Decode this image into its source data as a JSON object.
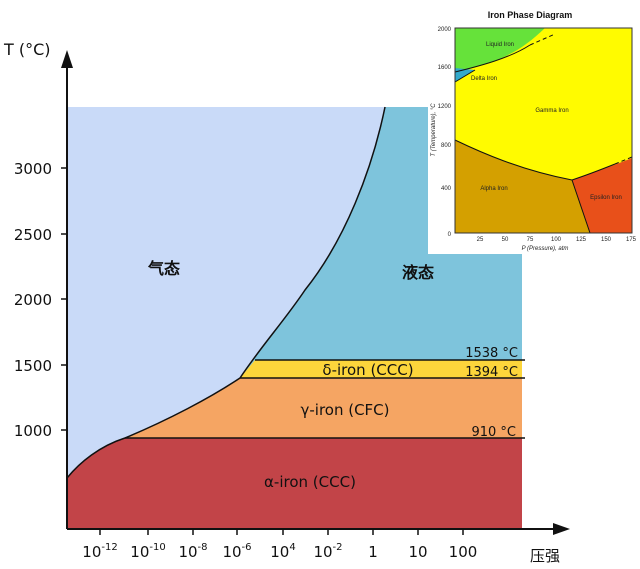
{
  "chart_data": {
    "type": "diagram",
    "y_axis_label": "T (°C)",
    "x_axis_label": "压强",
    "y_ticks": [
      "1000",
      "1500",
      "2000",
      "2500",
      "3000"
    ],
    "x_ticks": [
      {
        "base": "10",
        "exp": "-12"
      },
      {
        "base": "10",
        "exp": "-10"
      },
      {
        "base": "10",
        "exp": "-8"
      },
      {
        "base": "10",
        "exp": "-6"
      },
      {
        "base": "10",
        "exp": "4"
      },
      {
        "base": "10",
        "exp": "-2"
      },
      {
        "base": "1",
        "exp": ""
      },
      {
        "base": "10",
        "exp": ""
      },
      {
        "base": "100",
        "exp": ""
      }
    ],
    "regions": {
      "gas": "气态",
      "liquid": "液态",
      "delta": "δ-iron (CCC)",
      "gamma": "γ-iron (CFC)",
      "alpha": "α-iron (CCC)"
    },
    "transition_temps": [
      "1538 °C",
      "1394 °C",
      "910 °C"
    ],
    "colors": {
      "gas": "#c9daf8",
      "liquid": "#7ec4dc",
      "delta": "#fcd53b",
      "gamma": "#f5a563",
      "alpha": "#c24448"
    },
    "inset": {
      "title": "Iron Phase Diagram",
      "y_axis_label": "T (Temperature), °C",
      "x_axis_label": "P (Pressure), atm",
      "y_ticks": [
        "2000",
        "1600",
        "1200",
        "800",
        "400",
        "0"
      ],
      "x_ticks": [
        "25",
        "50",
        "75",
        "100",
        "125",
        "150",
        "175"
      ],
      "regions": {
        "liquid": "Liquid Iron",
        "delta": "Delta Iron",
        "gamma": "Gamma Iron",
        "alpha": "Alpha Iron",
        "epsilon": "Epsilon Iron"
      },
      "colors": {
        "liquid": "#66e23a",
        "delta": "#33aacc",
        "gamma": "#fffb00",
        "alpha": "#d4a000",
        "epsilon": "#e8501a"
      }
    }
  }
}
